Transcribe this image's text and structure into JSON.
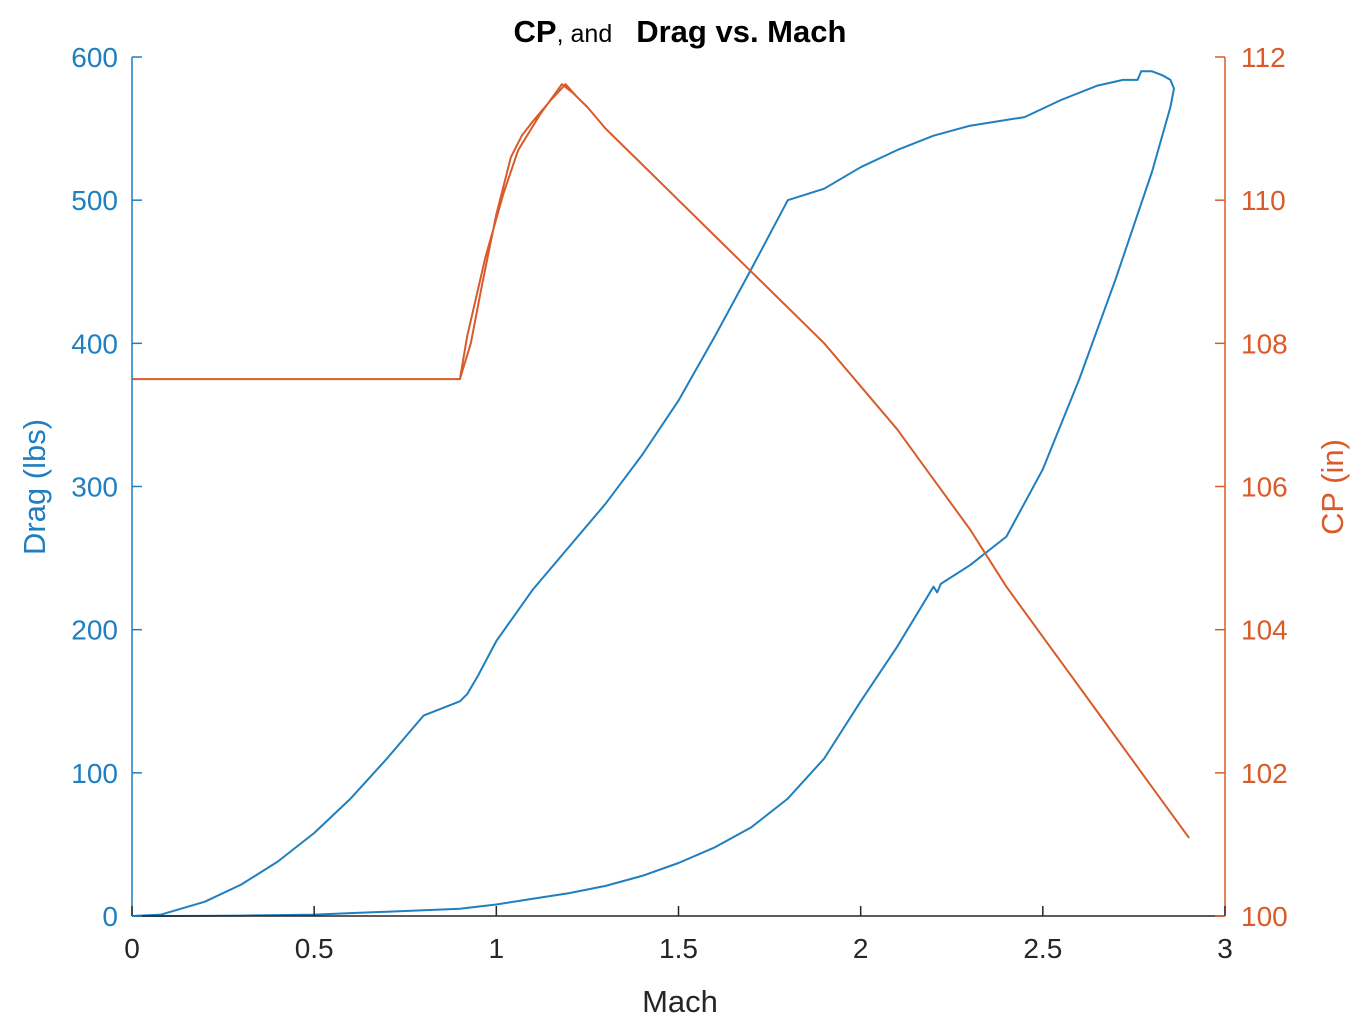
{
  "chart_data": {
    "type": "line",
    "title": {
      "part1": "CP",
      "part2": ", and",
      "part3": "Drag vs. Mach"
    },
    "xlabel": "Mach",
    "ylabel_left": "Drag (lbs)",
    "ylabel_right": "CP (in)",
    "xlim": [
      0,
      3
    ],
    "ylim_left": [
      0,
      600
    ],
    "ylim_right": [
      100,
      112
    ],
    "x_ticks": [
      "0",
      "0.5",
      "1",
      "1.5",
      "2",
      "2.5",
      "3"
    ],
    "y_left_ticks": [
      "0",
      "100",
      "200",
      "300",
      "400",
      "500",
      "600"
    ],
    "y_right_ticks": [
      "100",
      "102",
      "104",
      "106",
      "108",
      "110",
      "112"
    ],
    "grid": false,
    "colors": {
      "left": "#1f7fbf",
      "right": "#d95b2a",
      "axis_dark": "#262626"
    },
    "series": [
      {
        "axis": "left",
        "x": [
          0,
          0.08,
          0.2,
          0.3,
          0.4,
          0.5,
          0.6,
          0.7,
          0.8,
          0.9,
          0.92,
          0.95,
          1.0,
          1.05,
          1.1,
          1.2,
          1.3,
          1.4,
          1.5,
          1.6,
          1.7,
          1.8,
          1.9,
          2.0,
          2.1,
          2.2,
          2.3,
          2.45,
          2.55,
          2.65,
          2.72,
          2.76,
          2.77,
          2.8,
          2.83,
          2.85,
          2.86,
          2.85,
          2.8,
          2.7,
          2.6,
          2.5,
          2.4,
          2.3,
          2.22,
          2.21,
          2.2,
          2.1,
          2.0,
          1.9,
          1.8,
          1.7,
          1.6,
          1.5,
          1.4,
          1.3,
          1.2,
          1.1,
          1.0,
          0.9,
          0.8,
          0.7,
          0.6,
          0.5,
          0.4,
          0.3,
          0.2,
          0.1,
          0.0
        ],
        "y": [
          0,
          1,
          10,
          22,
          38,
          58,
          82,
          110,
          140,
          150,
          155,
          168,
          192,
          210,
          228,
          258,
          288,
          322,
          360,
          405,
          452,
          500,
          508,
          523,
          535,
          545,
          552,
          558,
          570,
          580,
          584,
          584,
          590,
          590,
          587,
          584,
          578,
          565,
          520,
          445,
          375,
          312,
          265,
          245,
          232,
          226,
          230,
          188,
          150,
          110,
          82,
          62,
          48,
          37,
          28,
          21,
          16,
          12,
          8,
          5,
          4,
          3,
          2,
          1,
          0.6,
          0.3,
          0.1,
          0,
          0
        ]
      },
      {
        "axis": "right",
        "x": [
          0,
          0.9,
          0.93,
          0.96,
          1.0,
          1.04,
          1.07,
          1.1,
          1.15,
          1.19,
          1.22,
          1.25,
          1.3,
          1.4,
          1.5,
          1.6,
          1.7,
          1.8,
          1.9,
          2.0,
          2.1,
          2.2,
          2.3,
          2.4,
          2.5,
          2.6,
          2.7,
          2.8,
          2.9,
          2.8,
          2.7,
          2.6,
          2.5,
          2.4,
          2.3,
          2.2,
          2.1,
          2.0,
          1.9,
          1.8,
          1.7,
          1.6,
          1.5,
          1.4,
          1.3,
          1.25,
          1.21,
          1.18,
          1.12,
          1.06,
          1.02,
          0.97,
          0.92,
          0.9,
          0
        ],
        "y": [
          107.5,
          107.5,
          108.0,
          108.8,
          109.8,
          110.6,
          110.9,
          111.1,
          111.4,
          111.62,
          111.45,
          111.3,
          111.0,
          110.5,
          110.0,
          109.5,
          109.0,
          108.5,
          108.0,
          107.4,
          106.8,
          106.1,
          105.4,
          104.6,
          103.9,
          103.2,
          102.5,
          101.8,
          101.1,
          101.8,
          102.5,
          103.2,
          103.9,
          104.6,
          105.4,
          106.1,
          106.8,
          107.4,
          108.0,
          108.5,
          109.0,
          109.5,
          110.0,
          110.5,
          111.0,
          111.3,
          111.5,
          111.62,
          111.2,
          110.7,
          110.1,
          109.2,
          108.1,
          107.5,
          107.5
        ]
      }
    ]
  }
}
